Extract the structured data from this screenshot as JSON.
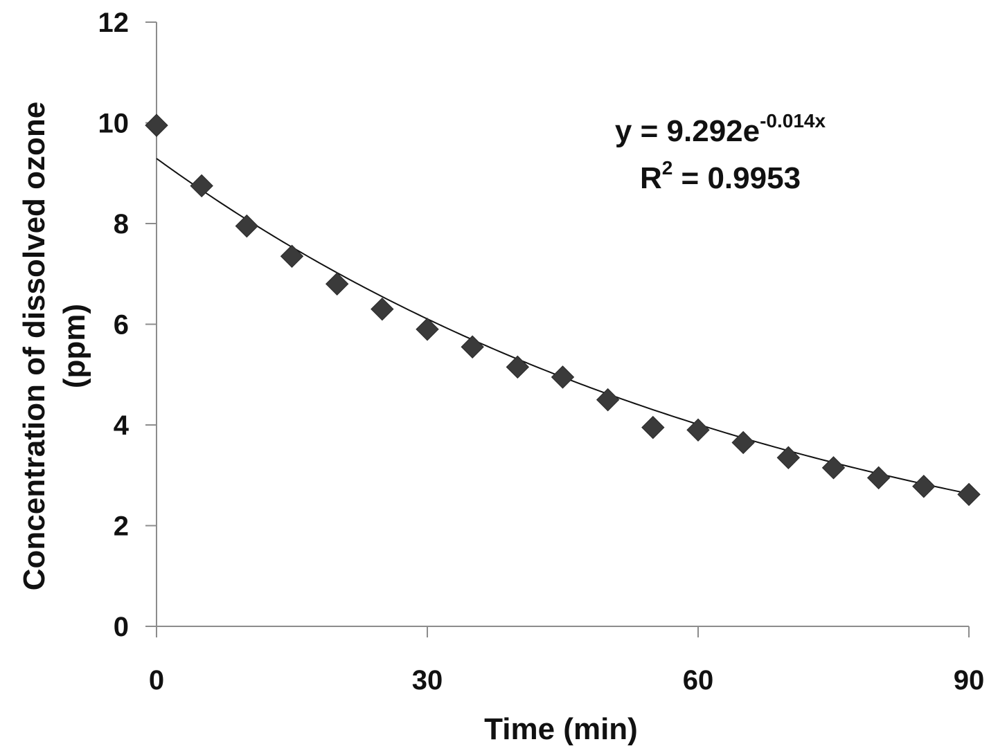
{
  "chart_data": {
    "type": "scatter",
    "title": "",
    "xlabel": "Time (min)",
    "ylabel": [
      "Concentration of dissolved ozone",
      "(ppm)"
    ],
    "xlim": [
      0,
      90
    ],
    "ylim": [
      0,
      12
    ],
    "x_ticks": [
      "0",
      "30",
      "60",
      "90"
    ],
    "x_tick_values": [
      0,
      30,
      60,
      90
    ],
    "y_ticks": [
      "0",
      "2",
      "4",
      "6",
      "8",
      "10",
      "12"
    ],
    "y_tick_values": [
      0,
      2,
      4,
      6,
      8,
      10,
      12
    ],
    "grid": false,
    "legend": "none",
    "marker": "diamond",
    "marker_color": "#3a3a3a",
    "trendline_color": "#111111",
    "series": [
      {
        "x": [
          0,
          5,
          10,
          15,
          20,
          25,
          30,
          35,
          40,
          45,
          50,
          55,
          60,
          65,
          70,
          75,
          80,
          85,
          90
        ],
        "y": [
          9.95,
          8.75,
          7.95,
          7.35,
          6.8,
          6.3,
          5.9,
          5.55,
          5.15,
          4.95,
          4.5,
          3.95,
          3.9,
          3.65,
          3.35,
          3.15,
          2.95,
          2.78,
          2.62
        ]
      }
    ],
    "trendline": {
      "type": "exponential",
      "a": 9.292,
      "b": -0.014
    },
    "annotations": {
      "equation_main": "y = 9.292e",
      "equation_exp": "-0.014x",
      "r2_label": "R",
      "r2_sup": "2",
      "r2_value": " = 0.9953"
    }
  }
}
